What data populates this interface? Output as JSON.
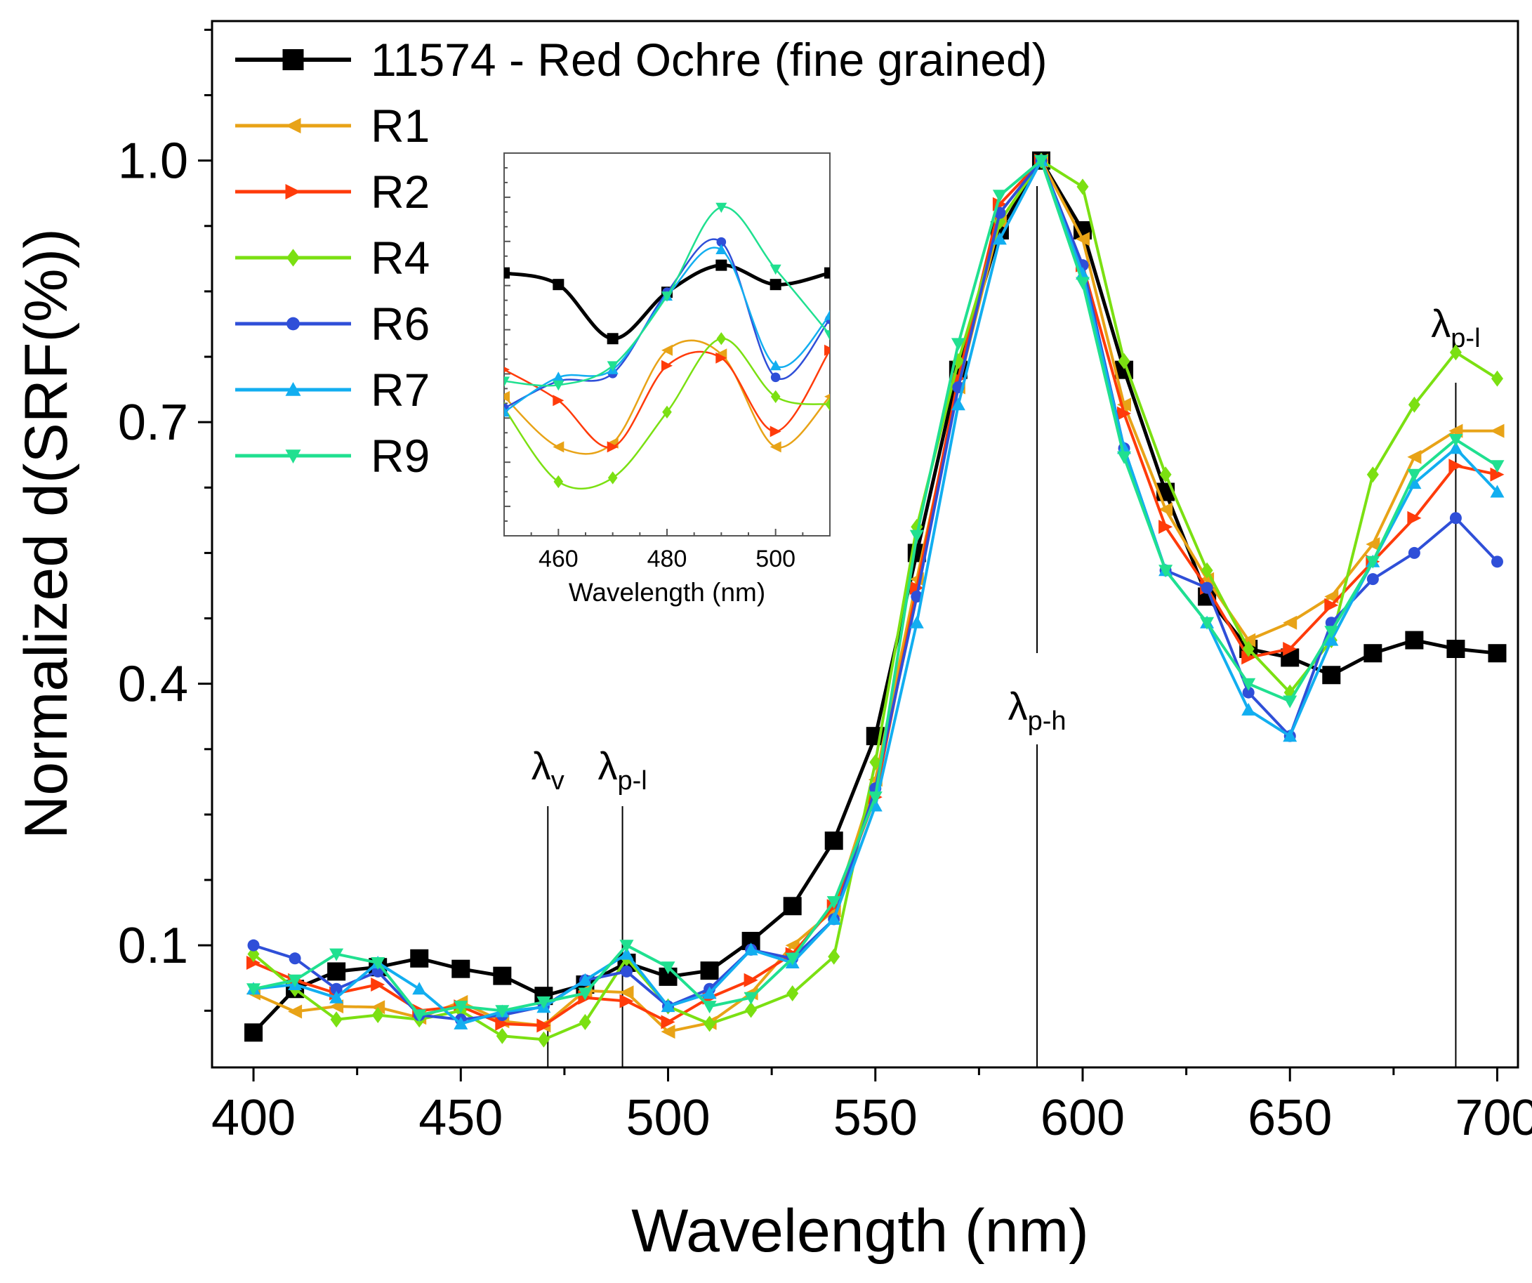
{
  "chart_data": {
    "type": "line",
    "xlabel": "Wavelength (nm)",
    "ylabel": "Normalized d(SRF(%))",
    "xlim": [
      390,
      705
    ],
    "ylim": [
      -0.04,
      1.16
    ],
    "xticks": [
      400,
      450,
      500,
      550,
      600,
      650,
      700
    ],
    "yticks": [
      0.1,
      0.4,
      0.7,
      1.0
    ],
    "ytick_labels": [
      "0.1",
      "0.4",
      "0.7",
      "1.0"
    ],
    "legend_position": "top-left",
    "x": [
      400,
      410,
      420,
      430,
      440,
      450,
      460,
      470,
      480,
      490,
      500,
      510,
      520,
      530,
      540,
      550,
      560,
      570,
      580,
      590,
      600,
      610,
      620,
      630,
      640,
      650,
      660,
      670,
      680,
      690,
      700
    ],
    "series": [
      {
        "name": "11574 - Red Ochre (fine grained)",
        "color": "#000000",
        "marker": "square",
        "values": [
          0.0,
          0.05,
          0.07,
          0.075,
          0.085,
          0.073,
          0.065,
          0.042,
          0.055,
          0.08,
          0.064,
          0.071,
          0.105,
          0.145,
          0.22,
          0.34,
          0.55,
          0.76,
          0.92,
          1.0,
          0.92,
          0.76,
          0.62,
          0.5,
          0.44,
          0.43,
          0.41,
          0.435,
          0.45,
          0.44,
          0.435
        ]
      },
      {
        "name": "R1",
        "color": "#e8a317",
        "marker": "triangle-left",
        "values": [
          0.045,
          0.024,
          0.03,
          0.029,
          0.017,
          0.035,
          0.013,
          0.008,
          0.048,
          0.046,
          0.001,
          0.011,
          0.045,
          0.1,
          0.14,
          0.29,
          0.52,
          0.74,
          0.93,
          1.0,
          0.91,
          0.72,
          0.6,
          0.52,
          0.45,
          0.47,
          0.5,
          0.56,
          0.66,
          0.69,
          0.69
        ]
      },
      {
        "name": "R2",
        "color": "#ff3b0a",
        "marker": "triangle-right",
        "values": [
          0.08,
          0.06,
          0.045,
          0.055,
          0.025,
          0.03,
          0.01,
          0.008,
          0.04,
          0.036,
          0.012,
          0.04,
          0.06,
          0.09,
          0.145,
          0.27,
          0.51,
          0.75,
          0.95,
          1.0,
          0.88,
          0.71,
          0.58,
          0.51,
          0.43,
          0.44,
          0.49,
          0.54,
          0.59,
          0.65,
          0.64
        ]
      },
      {
        "name": "R4",
        "color": "#7be012",
        "marker": "diamond",
        "values": [
          0.09,
          0.05,
          0.015,
          0.02,
          0.015,
          0.025,
          -0.004,
          -0.008,
          0.012,
          0.085,
          0.03,
          0.01,
          0.026,
          0.045,
          0.087,
          0.31,
          0.58,
          0.77,
          0.93,
          1.0,
          0.97,
          0.77,
          0.64,
          0.53,
          0.44,
          0.39,
          0.45,
          0.64,
          0.72,
          0.78,
          0.75
        ]
      },
      {
        "name": "R6",
        "color": "#2f4fd8",
        "marker": "circle",
        "values": [
          0.1,
          0.085,
          0.05,
          0.07,
          0.02,
          0.015,
          0.02,
          0.03,
          0.06,
          0.07,
          0.03,
          0.05,
          0.095,
          0.085,
          0.13,
          0.28,
          0.5,
          0.74,
          0.94,
          1.0,
          0.88,
          0.67,
          0.53,
          0.51,
          0.39,
          0.34,
          0.47,
          0.52,
          0.55,
          0.59,
          0.54
        ]
      },
      {
        "name": "R7",
        "color": "#12aef0",
        "marker": "triangle-up",
        "values": [
          0.05,
          0.055,
          0.04,
          0.08,
          0.05,
          0.01,
          0.024,
          0.029,
          0.06,
          0.09,
          0.03,
          0.045,
          0.095,
          0.08,
          0.13,
          0.26,
          0.47,
          0.72,
          0.91,
          1.0,
          0.87,
          0.67,
          0.53,
          0.47,
          0.37,
          0.34,
          0.45,
          0.54,
          0.63,
          0.67,
          0.62
        ]
      },
      {
        "name": "R9",
        "color": "#20e090",
        "marker": "triangle-down",
        "values": [
          0.05,
          0.06,
          0.09,
          0.08,
          0.02,
          0.03,
          0.025,
          0.035,
          0.045,
          0.1,
          0.075,
          0.03,
          0.04,
          0.085,
          0.15,
          0.27,
          0.57,
          0.79,
          0.96,
          1.0,
          0.86,
          0.66,
          0.53,
          0.47,
          0.4,
          0.38,
          0.46,
          0.54,
          0.64,
          0.68,
          0.65
        ]
      }
    ],
    "annotations": [
      {
        "symbol": "λ",
        "sub": "v",
        "x": 471
      },
      {
        "symbol": "λ",
        "sub": "p-l",
        "x": 489
      },
      {
        "symbol": "λ",
        "sub": "p-h",
        "x": 589
      },
      {
        "symbol": "λ",
        "sub": "p-l",
        "x": 690
      }
    ],
    "inset": {
      "xlabel": "Wavelength (nm)",
      "xlim": [
        450,
        510
      ],
      "xticks": [
        460,
        480,
        500
      ],
      "x": [
        450,
        460,
        470,
        480,
        490,
        500,
        510
      ],
      "series": [
        {
          "name": "11574 - Red Ochre (fine grained)",
          "values": [
            7.1,
            6.8,
            5.4,
            6.6,
            7.3,
            6.8,
            7.1
          ]
        },
        {
          "name": "R1",
          "values": [
            3.9,
            2.6,
            2.7,
            5.1,
            5.0,
            2.6,
            3.9
          ]
        },
        {
          "name": "R2",
          "values": [
            4.6,
            3.8,
            2.6,
            4.7,
            4.9,
            3.0,
            5.1
          ]
        },
        {
          "name": "R4",
          "values": [
            3.6,
            1.7,
            1.8,
            3.5,
            5.4,
            3.9,
            3.7
          ]
        },
        {
          "name": "R6",
          "values": [
            3.6,
            4.3,
            4.5,
            6.6,
            7.9,
            4.4,
            5.9
          ]
        },
        {
          "name": "R7",
          "values": [
            3.5,
            4.4,
            4.6,
            6.5,
            7.7,
            4.7,
            6.0
          ]
        },
        {
          "name": "R9",
          "values": [
            4.3,
            4.2,
            4.7,
            6.5,
            8.8,
            7.2,
            5.5
          ]
        }
      ]
    }
  }
}
